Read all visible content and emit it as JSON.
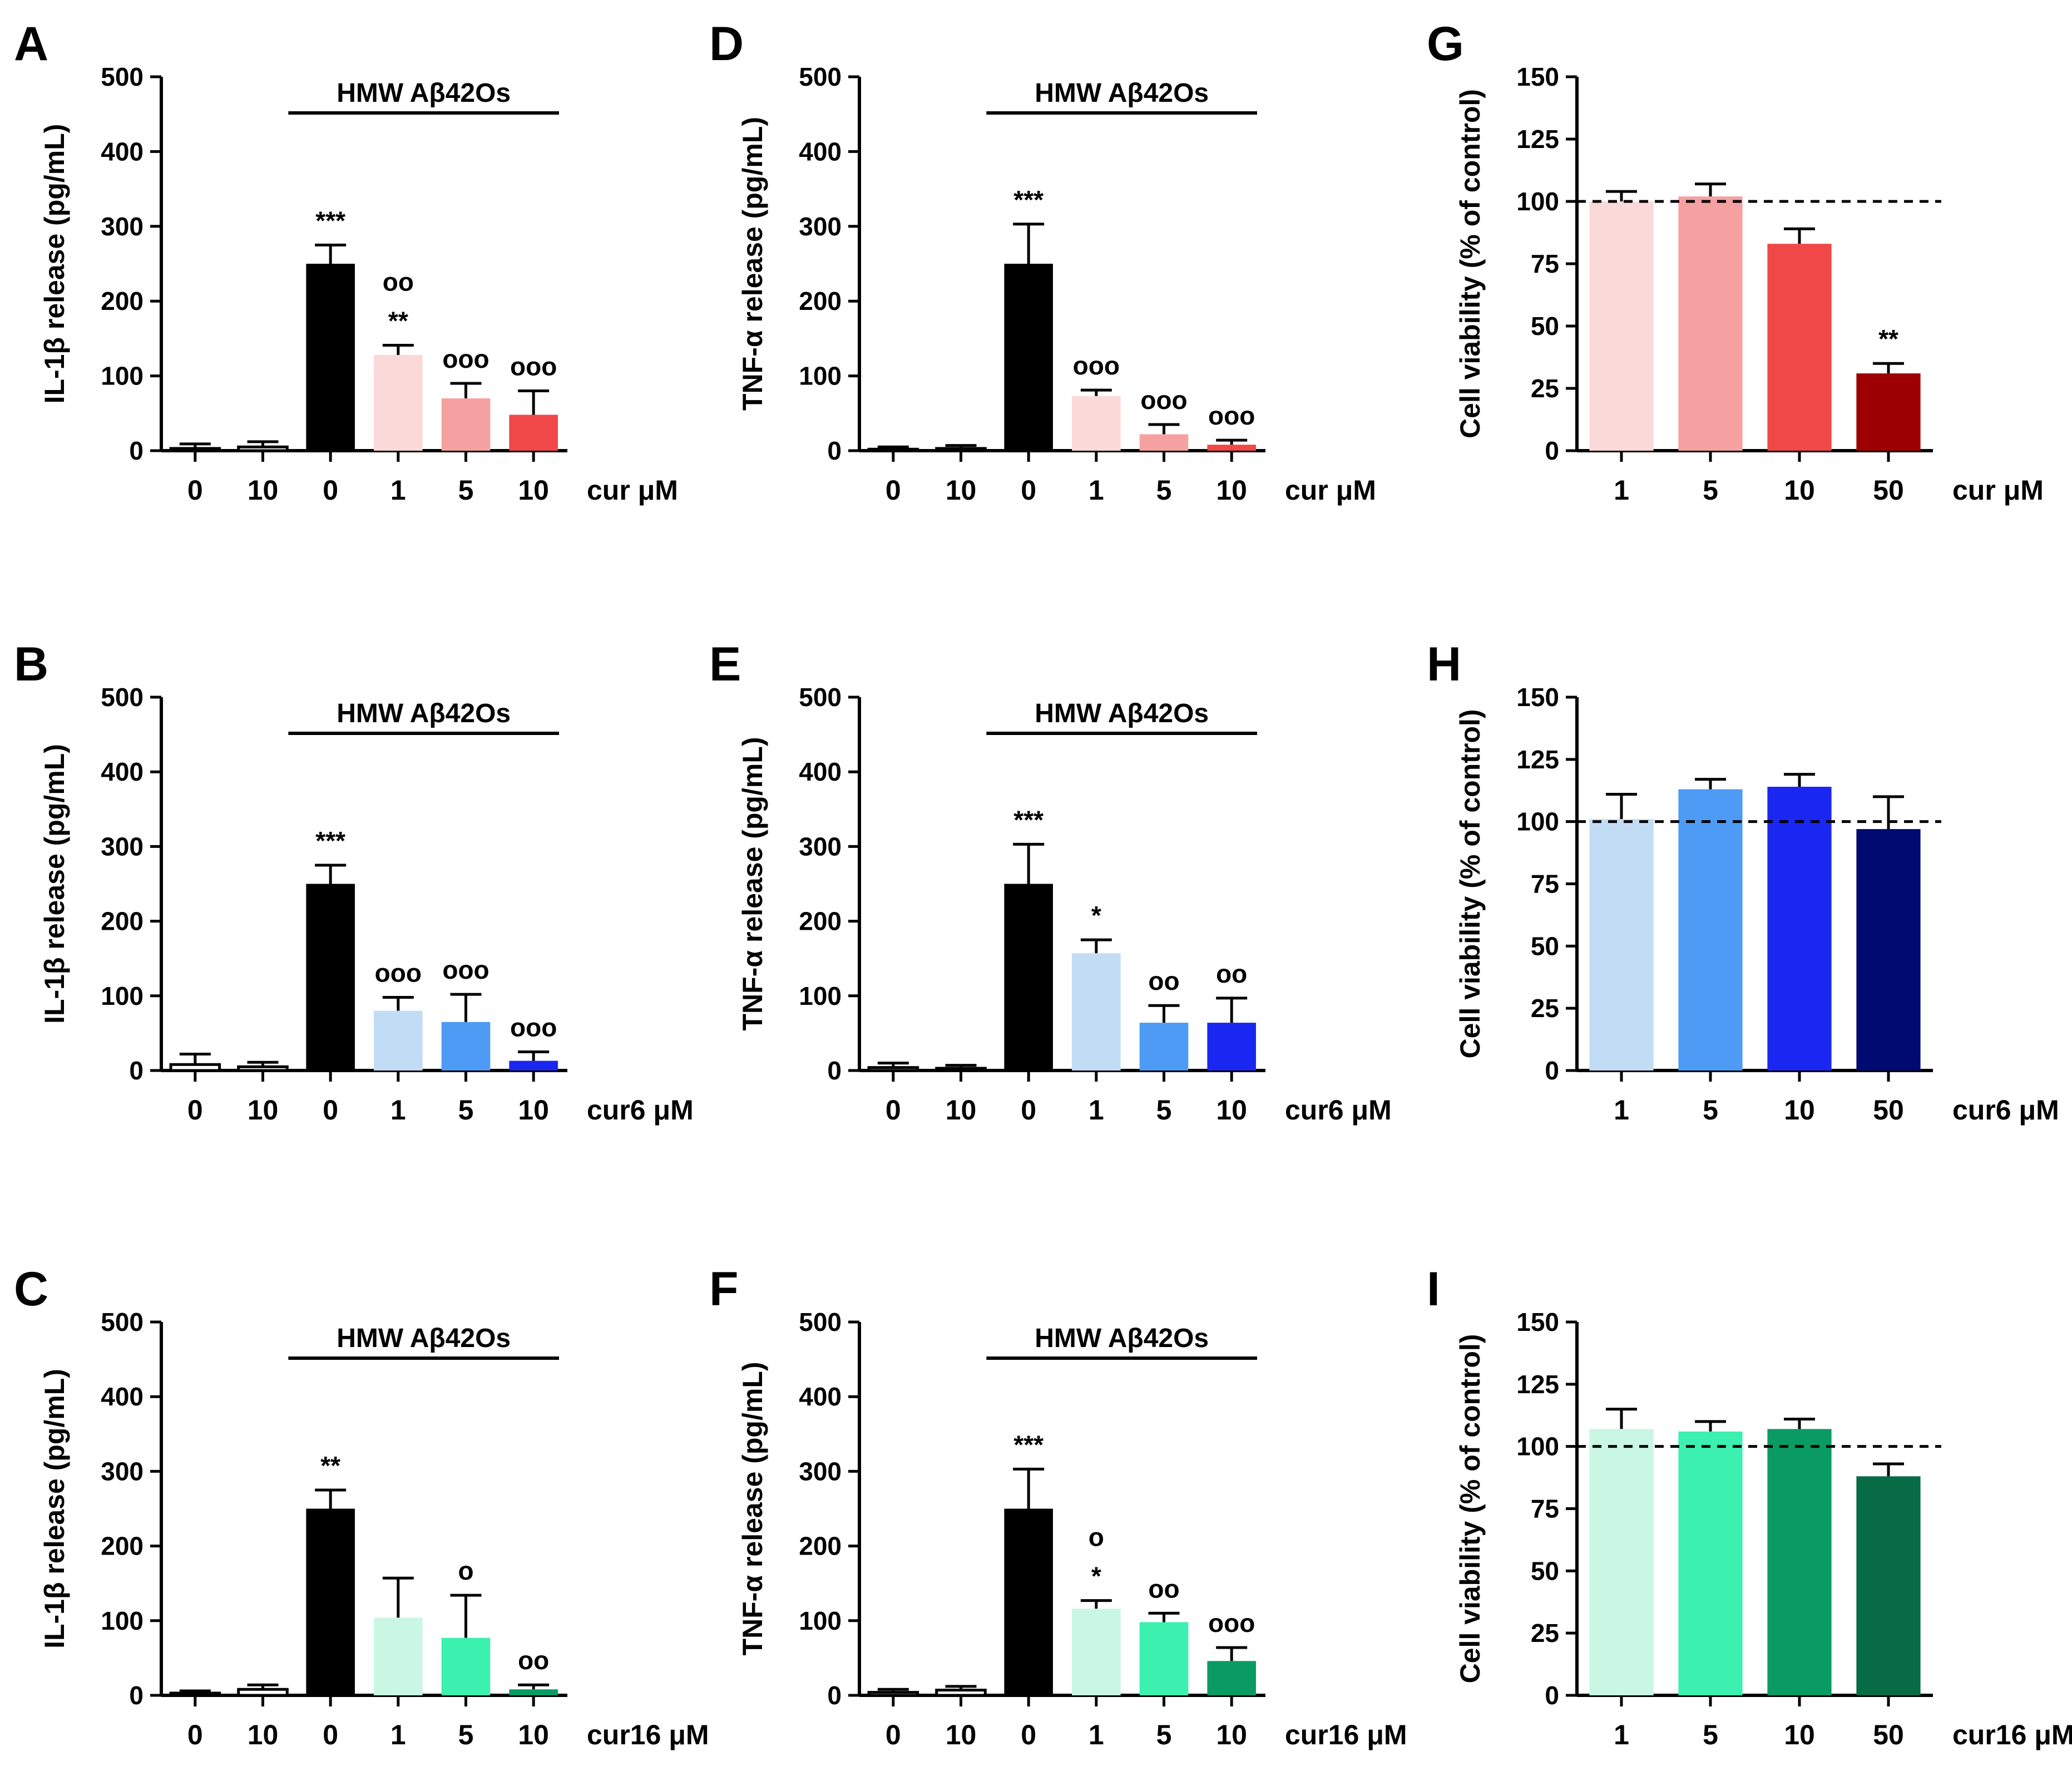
{
  "figure_title": "",
  "chart_data": [
    {
      "panel": "A",
      "type": "bar",
      "ylabel": "IL-1β release (pg/mL)",
      "ylim": [
        0,
        500
      ],
      "yticks": [
        "0",
        "100",
        "200",
        "300",
        "400",
        "500"
      ],
      "categories": [
        "0",
        "10",
        "0",
        "1",
        "5",
        "10"
      ],
      "unit_label": "cur μM",
      "bracket_label": "HMW Aβ42Os",
      "values": [
        3,
        5,
        250,
        128,
        70,
        48
      ],
      "errors": [
        6,
        7,
        25,
        13,
        20,
        32
      ],
      "colors": [
        "#ffffff",
        "#ffffff",
        "#000000",
        "#fcd9d9",
        "#f6a1a1",
        "#f04848"
      ],
      "annotations": [
        "",
        "",
        "***",
        "oo\n**",
        "ooo",
        "ooo"
      ]
    },
    {
      "panel": "D",
      "type": "bar",
      "ylabel": "TNF-α release (pg/mL)",
      "ylim": [
        0,
        500
      ],
      "yticks": [
        "0",
        "100",
        "200",
        "300",
        "400",
        "500"
      ],
      "categories": [
        "0",
        "10",
        "0",
        "1",
        "5",
        "10"
      ],
      "unit_label": "cur μM",
      "bracket_label": "HMW Aβ42Os",
      "values": [
        2,
        3,
        250,
        73,
        22,
        8
      ],
      "errors": [
        3,
        4,
        53,
        8,
        13,
        6
      ],
      "colors": [
        "#ffffff",
        "#ffffff",
        "#000000",
        "#fcd9d9",
        "#f6a1a1",
        "#f04848"
      ],
      "annotations": [
        "",
        "",
        "***",
        "ooo",
        "ooo",
        "ooo"
      ]
    },
    {
      "panel": "G",
      "type": "bar",
      "ylabel": "Cell viability (% of control)",
      "ylim": [
        0,
        150
      ],
      "yticks": [
        "0",
        "25",
        "50",
        "75",
        "100",
        "125",
        "150"
      ],
      "categories": [
        "1",
        "5",
        "10",
        "50"
      ],
      "unit_label": "cur μM",
      "reference_line": 100,
      "values": [
        100,
        102,
        83,
        31
      ],
      "errors": [
        4,
        5,
        6,
        4
      ],
      "colors": [
        "#fcd9d9",
        "#f6a1a1",
        "#f04848",
        "#9d0000"
      ],
      "annotations": [
        "",
        "",
        "",
        "**"
      ]
    },
    {
      "panel": "B",
      "type": "bar",
      "ylabel": "IL-1β release (pg/mL)",
      "ylim": [
        0,
        500
      ],
      "yticks": [
        "0",
        "100",
        "200",
        "300",
        "400",
        "500"
      ],
      "categories": [
        "0",
        "10",
        "0",
        "1",
        "5",
        "10"
      ],
      "unit_label": "cur6 μM",
      "bracket_label": "HMW Aβ42Os",
      "values": [
        8,
        5,
        250,
        80,
        65,
        13
      ],
      "errors": [
        14,
        6,
        25,
        18,
        37,
        12
      ],
      "colors": [
        "#ffffff",
        "#ffffff",
        "#000000",
        "#c3dcf5",
        "#4e9bf5",
        "#1a27f0"
      ],
      "annotations": [
        "",
        "",
        "***",
        "ooo",
        "ooo",
        "ooo"
      ]
    },
    {
      "panel": "E",
      "type": "bar",
      "ylabel": "TNF-α release (pg/mL)",
      "ylim": [
        0,
        500
      ],
      "yticks": [
        "0",
        "100",
        "200",
        "300",
        "400",
        "500"
      ],
      "categories": [
        "0",
        "10",
        "0",
        "1",
        "5",
        "10"
      ],
      "unit_label": "cur6 μM",
      "bracket_label": "HMW Aβ42Os",
      "values": [
        4,
        3,
        250,
        157,
        64,
        64
      ],
      "errors": [
        6,
        4,
        53,
        18,
        23,
        33
      ],
      "colors": [
        "#ffffff",
        "#ffffff",
        "#000000",
        "#c3dcf5",
        "#4e9bf5",
        "#1a27f0"
      ],
      "annotations": [
        "",
        "",
        "***",
        "*",
        "oo",
        "oo"
      ]
    },
    {
      "panel": "H",
      "type": "bar",
      "ylabel": "Cell viability (% of control)",
      "ylim": [
        0,
        150
      ],
      "yticks": [
        "0",
        "25",
        "50",
        "75",
        "100",
        "125",
        "150"
      ],
      "categories": [
        "1",
        "5",
        "10",
        "50"
      ],
      "unit_label": "cur6 μM",
      "reference_line": 100,
      "values": [
        101,
        113,
        114,
        97
      ],
      "errors": [
        10,
        4,
        5,
        13
      ],
      "colors": [
        "#c3dcf5",
        "#4e9bf5",
        "#1a27f0",
        "#000a70"
      ],
      "annotations": [
        "",
        "",
        "",
        ""
      ]
    },
    {
      "panel": "C",
      "type": "bar",
      "ylabel": "IL-1β release (pg/mL)",
      "ylim": [
        0,
        500
      ],
      "yticks": [
        "0",
        "100",
        "200",
        "300",
        "400",
        "500"
      ],
      "categories": [
        "0",
        "10",
        "0",
        "1",
        "5",
        "10"
      ],
      "unit_label": "cur16 μM",
      "bracket_label": "HMW Aβ42Os",
      "values": [
        3,
        8,
        250,
        104,
        77,
        8
      ],
      "errors": [
        3,
        6,
        25,
        53,
        57,
        6
      ],
      "colors": [
        "#ffffff",
        "#ffffff",
        "#000000",
        "#c9f7e4",
        "#3cf0b0",
        "#0a9b64"
      ],
      "annotations": [
        "",
        "",
        "**",
        "",
        "o",
        "oo"
      ]
    },
    {
      "panel": "F",
      "type": "bar",
      "ylabel": "TNF-α release (pg/mL)",
      "ylim": [
        0,
        500
      ],
      "yticks": [
        "0",
        "100",
        "200",
        "300",
        "400",
        "500"
      ],
      "categories": [
        "0",
        "10",
        "0",
        "1",
        "5",
        "10"
      ],
      "unit_label": "cur16 μM",
      "bracket_label": "HMW Aβ42Os",
      "values": [
        4,
        7,
        250,
        116,
        98,
        46
      ],
      "errors": [
        4,
        5,
        53,
        11,
        12,
        18
      ],
      "colors": [
        "#ffffff",
        "#ffffff",
        "#000000",
        "#c9f7e4",
        "#3cf0b0",
        "#0a9b64"
      ],
      "annotations": [
        "",
        "",
        "***",
        "o\n*",
        "oo",
        "ooo"
      ]
    },
    {
      "panel": "I",
      "type": "bar",
      "ylabel": "Cell viability (% of control)",
      "ylim": [
        0,
        150
      ],
      "yticks": [
        "0",
        "25",
        "50",
        "75",
        "100",
        "125",
        "150"
      ],
      "categories": [
        "1",
        "5",
        "10",
        "50"
      ],
      "unit_label": "cur16 μM",
      "reference_line": 100,
      "values": [
        107,
        106,
        107,
        88
      ],
      "errors": [
        8,
        4,
        4,
        5
      ],
      "colors": [
        "#c9f7e4",
        "#3cf0b0",
        "#0a9b64",
        "#076b45"
      ],
      "annotations": [
        "",
        "",
        "",
        ""
      ]
    }
  ]
}
